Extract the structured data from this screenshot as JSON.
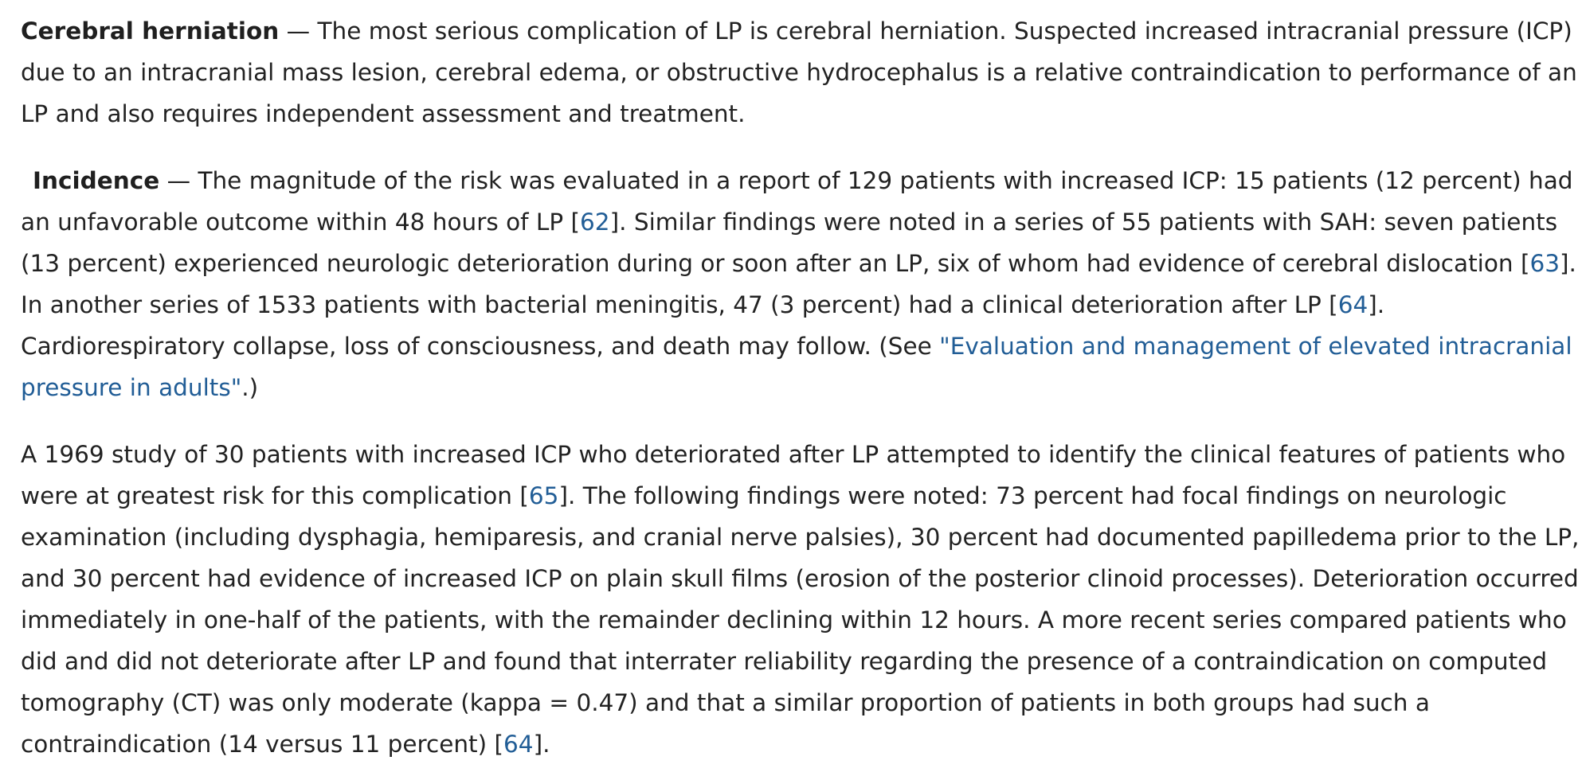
{
  "section1": {
    "heading": "Cerebral herniation",
    "dash": " — ",
    "text": "The most serious complication of LP is cerebral herniation. Suspected increased intracranial pressure (ICP) due to an intracranial mass lesion, cerebral edema, or obstructive hydrocephalus is a relative contraindication to performance of an LP and also requires independent assessment and treatment."
  },
  "section2": {
    "heading": "Incidence",
    "dash": " — ",
    "text1": "The magnitude of the risk was evaluated in a report of 129 patients with increased ICP: 15 patients (12 percent) had an unfavorable outcome within 48 hours of LP [",
    "ref1": "62",
    "text2": "]. Similar findings were noted in a series of 55 patients with SAH: seven patients (13 percent) experienced neurologic deterioration during or soon after an LP, six of whom had evidence of cerebral dislocation [",
    "ref2": "63",
    "text3": "]. In another series of 1533 patients with bacterial meningitis, 47 (3 percent) had a clinical deterioration after LP [",
    "ref3": "64",
    "text4": "]. Cardiorespiratory collapse, loss of consciousness, and death may follow. (See ",
    "link": "\"Evaluation and management of elevated intracranial pressure in adults\"",
    "text5": ".)"
  },
  "section3": {
    "text1": "A 1969 study of 30 patients with increased ICP who deteriorated after LP attempted to identify the clinical features of patients who were at greatest risk for this complication [",
    "ref1": "65",
    "text2": "]. The following findings were noted: 73 percent had focal findings on neurologic examination (including dysphagia, hemiparesis, and cranial nerve palsies), 30 percent had documented papilledema prior to the LP, and 30 percent had evidence of increased ICP on plain skull films (erosion of the posterior clinoid processes). Deterioration occurred immediately in one-half of the patients, with the remainder declining within 12 hours. A more recent series compared patients who did and did not deteriorate after LP and found that interrater reliability regarding the presence of a contraindication on computed tomography (CT) was only moderate (kappa = 0.47) and that a similar proportion of patients in both groups had such a contraindication (14 versus 11 percent) [",
    "ref2": "64",
    "text3": "]."
  },
  "colors": {
    "text": "#222222",
    "link": "#215d96",
    "background": "#ffffff"
  }
}
